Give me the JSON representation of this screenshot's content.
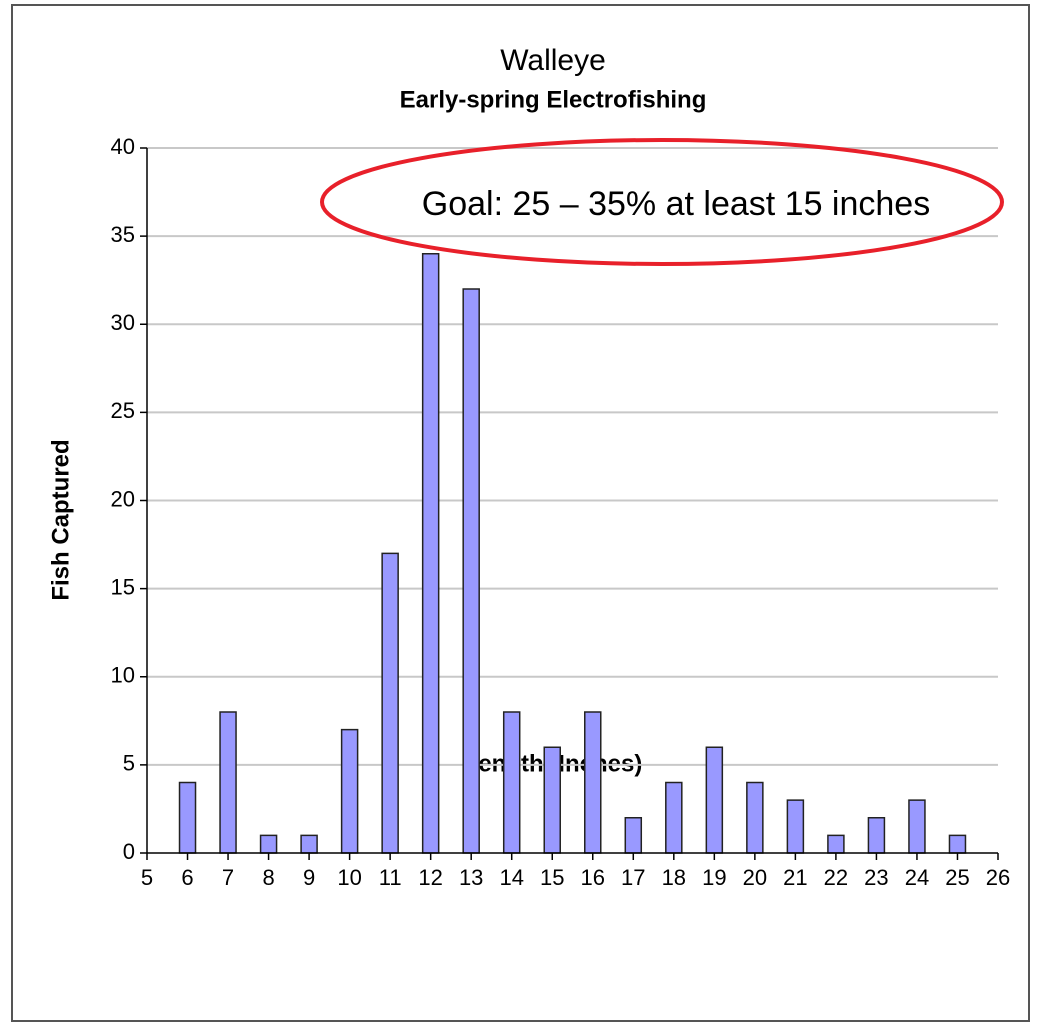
{
  "chart_data": {
    "type": "bar",
    "title": "Walleye",
    "subtitle": "Early-spring Electrofishing",
    "xlabel": "Length (Inches)",
    "ylabel": "Fish Captured",
    "annotation": "Goal:  25 – 35% at least 15 inches",
    "x": [
      6,
      7,
      8,
      9,
      10,
      11,
      12,
      13,
      14,
      15,
      16,
      17,
      18,
      19,
      20,
      21,
      22,
      23,
      24,
      25
    ],
    "values": [
      4,
      8,
      1,
      1,
      7,
      17,
      34,
      32,
      8,
      6,
      8,
      2,
      4,
      6,
      4,
      3,
      1,
      2,
      3,
      1
    ],
    "color": "#9999ff",
    "xlim": [
      5,
      26
    ],
    "xticks": [
      5,
      6,
      7,
      8,
      9,
      10,
      11,
      12,
      13,
      14,
      15,
      16,
      17,
      18,
      19,
      20,
      21,
      22,
      23,
      24,
      25,
      26
    ],
    "ylim": [
      0,
      40
    ],
    "yticks": [
      0,
      5,
      10,
      15,
      20,
      25,
      30,
      35,
      40
    ],
    "grid": true
  }
}
